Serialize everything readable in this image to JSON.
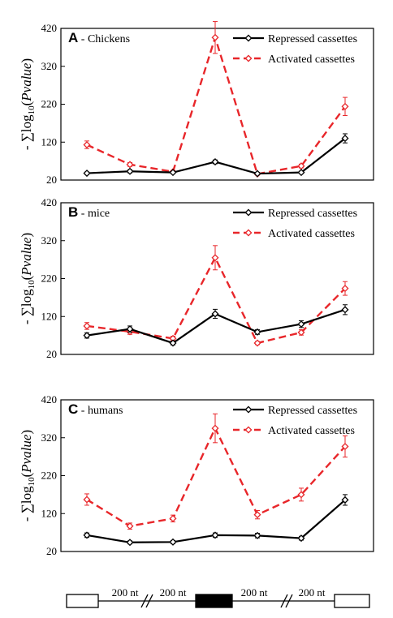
{
  "chart_data": [
    {
      "type": "line",
      "panel_letter": "A",
      "panel_label": " - Chickens",
      "ylabel": {
        "prefix": "- ∑log",
        "subscript": "10",
        "middle": "(",
        "italic": "Pvalue",
        "suffix": ")"
      },
      "ylim": [
        20,
        420
      ],
      "yticks": [
        "420",
        "320",
        "220",
        "120",
        "20"
      ],
      "x": [
        1,
        2,
        3,
        4,
        5,
        6,
        7
      ],
      "legend_position": "top-right",
      "grid": false,
      "series": [
        {
          "name": "Repressed cassettes",
          "color": "#000000",
          "dashed": false,
          "values": [
            38,
            43,
            40,
            68,
            37,
            40,
            130
          ],
          "errors": [
            3,
            4,
            3,
            5,
            3,
            3,
            12
          ]
        },
        {
          "name": "Activated cassettes",
          "color": "#e8262a",
          "dashed": true,
          "values": [
            113,
            61,
            42,
            396,
            36,
            57,
            214
          ],
          "errors": [
            10,
            5,
            3,
            42,
            3,
            5,
            24
          ]
        }
      ]
    },
    {
      "type": "line",
      "panel_letter": "B",
      "panel_label": " - mice",
      "ylabel": {
        "prefix": "- ∑log",
        "subscript": "10",
        "middle": "(",
        "italic": "Pvalue",
        "suffix": ")"
      },
      "ylim": [
        20,
        420
      ],
      "yticks": [
        "420",
        "320",
        "220",
        "120",
        "20"
      ],
      "x": [
        1,
        2,
        3,
        4,
        5,
        6,
        7
      ],
      "legend_position": "top-right",
      "grid": false,
      "series": [
        {
          "name": "Repressed cassettes",
          "color": "#000000",
          "dashed": false,
          "values": [
            70,
            87,
            50,
            127,
            79,
            100,
            138
          ],
          "errors": [
            7,
            8,
            5,
            12,
            6,
            9,
            13
          ]
        },
        {
          "name": "Activated cassettes",
          "color": "#e8262a",
          "dashed": true,
          "values": [
            95,
            80,
            62,
            275,
            50,
            78,
            194
          ],
          "errors": [
            9,
            7,
            6,
            32,
            4,
            7,
            18
          ]
        }
      ]
    },
    {
      "type": "line",
      "panel_letter": "C",
      "panel_label": " - humans",
      "ylabel": {
        "prefix": "- ∑log",
        "subscript": "10",
        "middle": "(",
        "italic": "Pvalue",
        "suffix": ")"
      },
      "ylim": [
        20,
        420
      ],
      "yticks": [
        "420",
        "320",
        "220",
        "120",
        "20"
      ],
      "x": [
        1,
        2,
        3,
        4,
        5,
        6,
        7
      ],
      "legend_position": "top-right",
      "grid": false,
      "series": [
        {
          "name": "Repressed cassettes",
          "color": "#000000",
          "dashed": false,
          "values": [
            63,
            44,
            45,
            63,
            62,
            55,
            156
          ],
          "errors": [
            6,
            4,
            4,
            6,
            6,
            5,
            14
          ]
        },
        {
          "name": "Activated cassettes",
          "color": "#e8262a",
          "dashed": true,
          "values": [
            157,
            87,
            107,
            345,
            117,
            170,
            297
          ],
          "errors": [
            15,
            8,
            9,
            38,
            11,
            17,
            28
          ]
        }
      ]
    }
  ],
  "gene_model": {
    "labels": [
      "200 nt",
      "200 nt",
      "200 nt",
      "200 nt"
    ]
  }
}
